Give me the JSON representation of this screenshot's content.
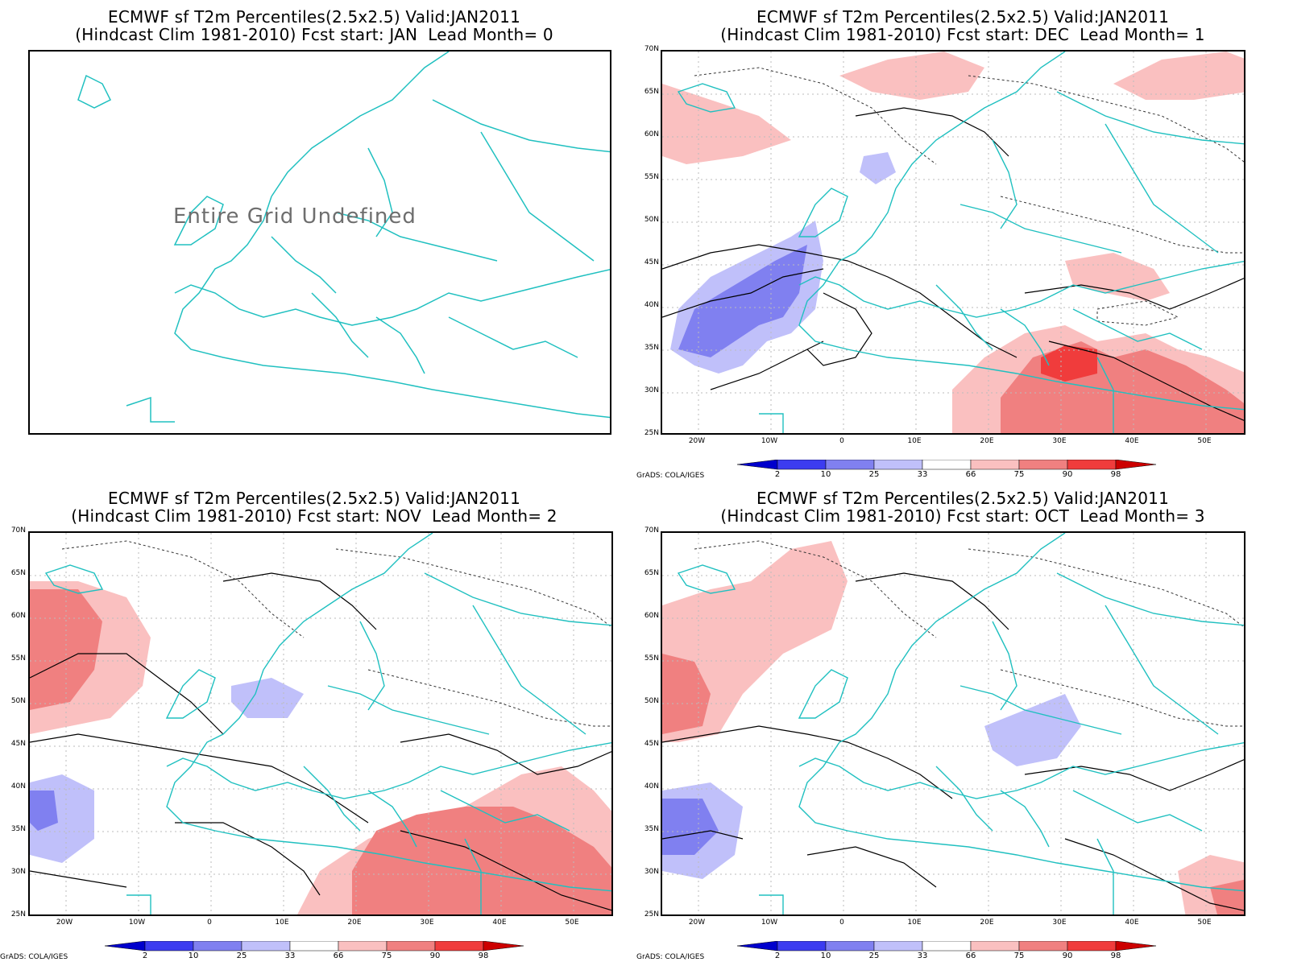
{
  "panels": [
    {
      "title_line1": "ECMWF sf T2m Percentiles(2.5x2.5) Valid:JAN2011",
      "title_line2": "(Hindcast Clim 1981-2010) Fcst start: JAN  Lead Month= 0",
      "message": "Entire Grid Undefined"
    },
    {
      "title_line1": "ECMWF sf T2m Percentiles(2.5x2.5) Valid:JAN2011",
      "title_line2": "(Hindcast Clim 1981-2010) Fcst start: DEC  Lead Month= 1"
    },
    {
      "title_line1": "ECMWF sf T2m Percentiles(2.5x2.5) Valid:JAN2011",
      "title_line2": "(Hindcast Clim 1981-2010) Fcst start: NOV  Lead Month= 2"
    },
    {
      "title_line1": "ECMWF sf T2m Percentiles(2.5x2.5) Valid:JAN2011",
      "title_line2": "(Hindcast Clim 1981-2010) Fcst start: OCT  Lead Month= 3"
    }
  ],
  "lat_labels": [
    "70N",
    "65N",
    "60N",
    "55N",
    "50N",
    "45N",
    "40N",
    "35N",
    "30N",
    "25N"
  ],
  "lon_labels": [
    "20W",
    "10W",
    "0",
    "10E",
    "20E",
    "30E",
    "40E",
    "50E"
  ],
  "legend": {
    "thresholds": [
      "2",
      "10",
      "25",
      "33",
      "66",
      "75",
      "90",
      "98"
    ],
    "colors": [
      "#0000cc",
      "#3c3cf0",
      "#8080f0",
      "#c0c0fa",
      "#ffffff",
      "#fac0c0",
      "#f08080",
      "#f03c3c",
      "#cc0000"
    ]
  },
  "credit": "GrADS: COLA/IGES",
  "colors": {
    "coast": "#20c0c0",
    "contour": "#000000",
    "grid": "#bbbbbb"
  }
}
